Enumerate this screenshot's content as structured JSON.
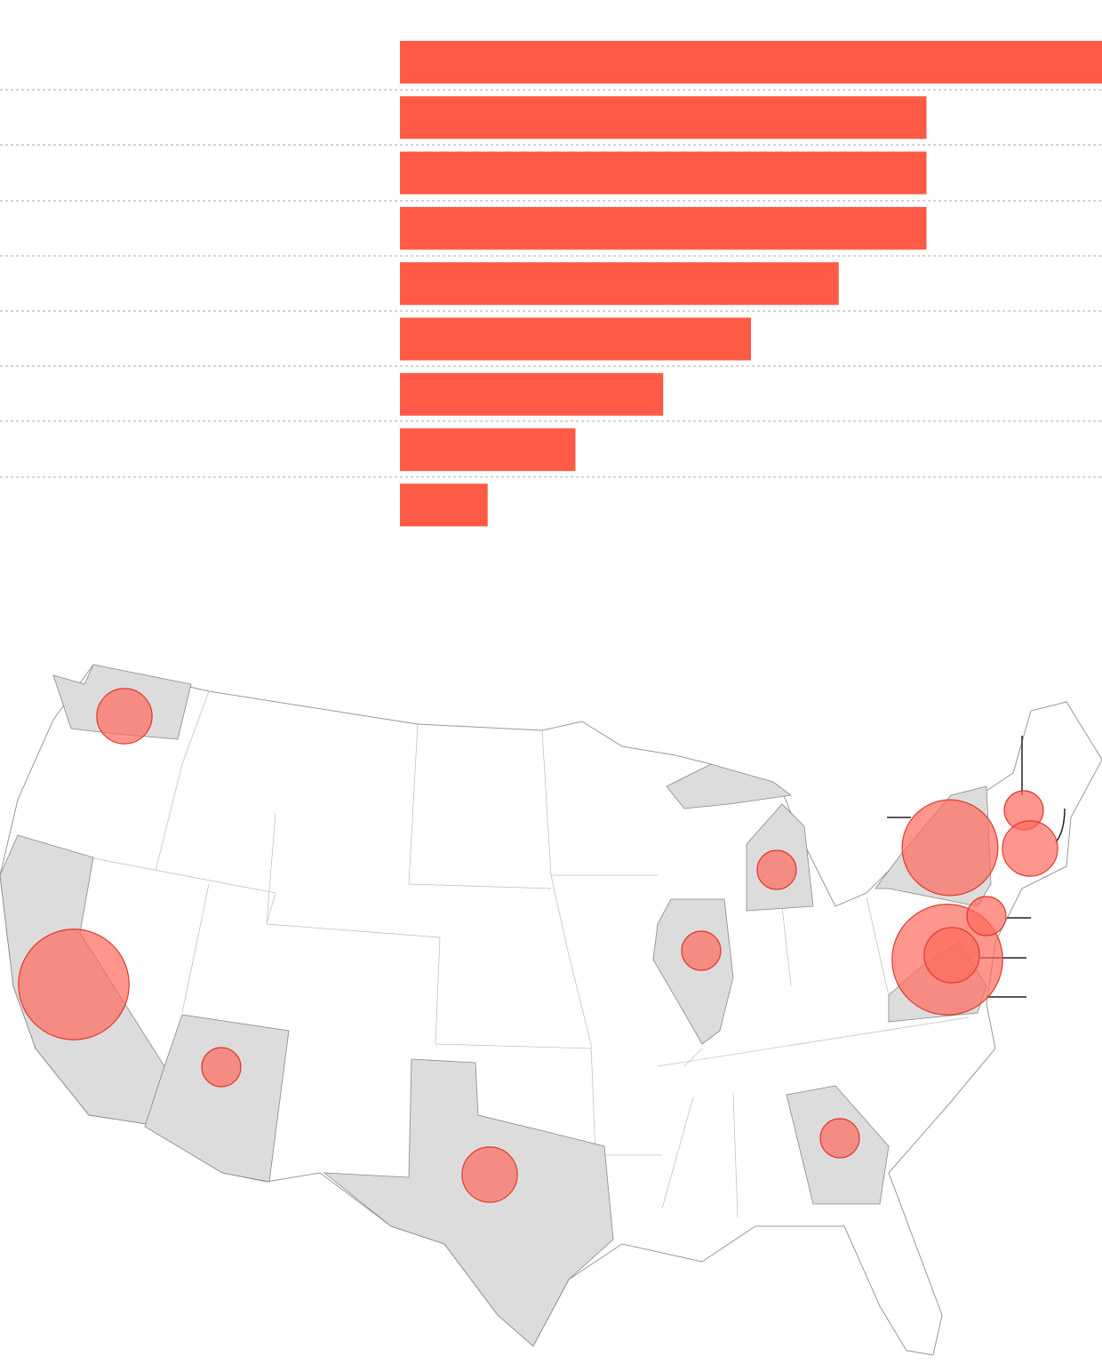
{
  "chart_data": [
    {
      "type": "bar",
      "categories": [
        null,
        null,
        null,
        null,
        null,
        null,
        null,
        null,
        null
      ],
      "values": [
        8,
        6,
        6,
        6,
        5,
        4,
        3,
        2,
        1
      ],
      "color": "#fe5a46",
      "xlim": [
        0,
        8
      ]
    },
    {
      "type": "bubble-map",
      "values": [
        8,
        6,
        8,
        2,
        1,
        1,
        2,
        2,
        1,
        2,
        1,
        1,
        1
      ],
      "color": "#ff6a5c",
      "stroke": "#e0392b"
    }
  ]
}
